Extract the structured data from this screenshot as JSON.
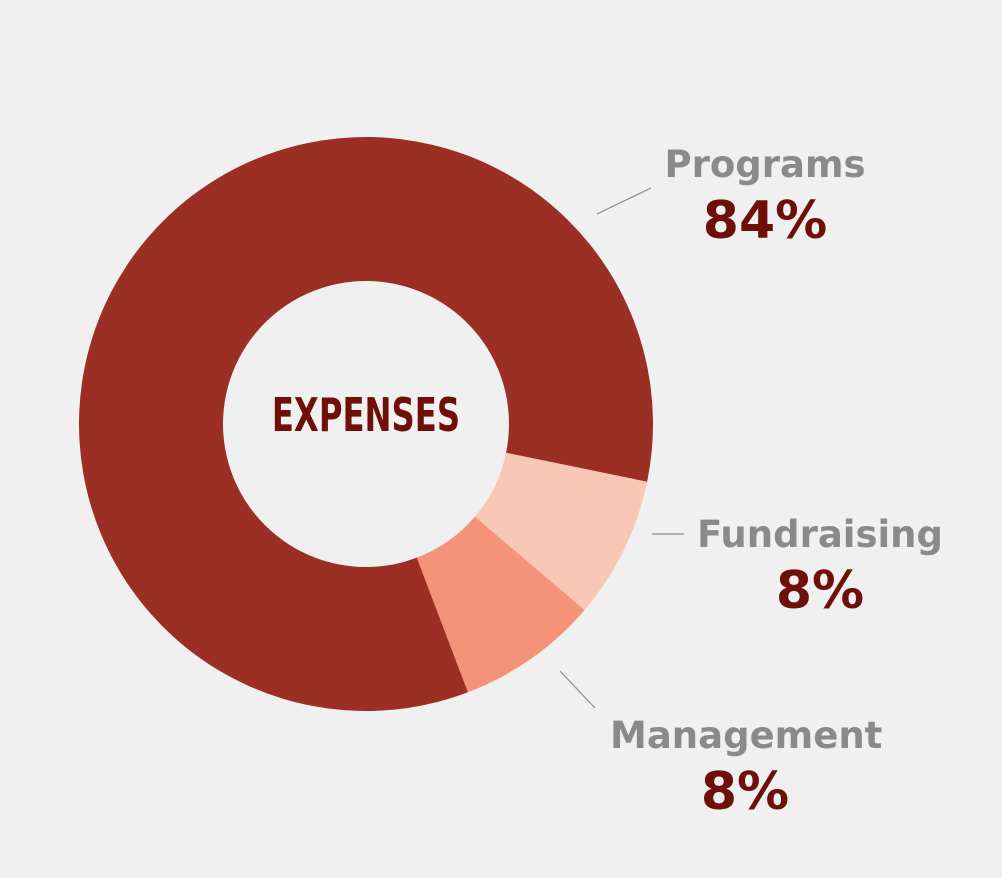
{
  "chart_data": {
    "type": "pie",
    "title": "EXPENSES",
    "categories": [
      "Programs",
      "Fundraising",
      "Management"
    ],
    "values": [
      84,
      8,
      8
    ],
    "value_labels": [
      "84%",
      "8%",
      "8%"
    ],
    "colors": [
      "#9c2f24",
      "#f9c7b6",
      "#f4937a"
    ],
    "donut": true,
    "legend": "outside labels with leader lines"
  }
}
